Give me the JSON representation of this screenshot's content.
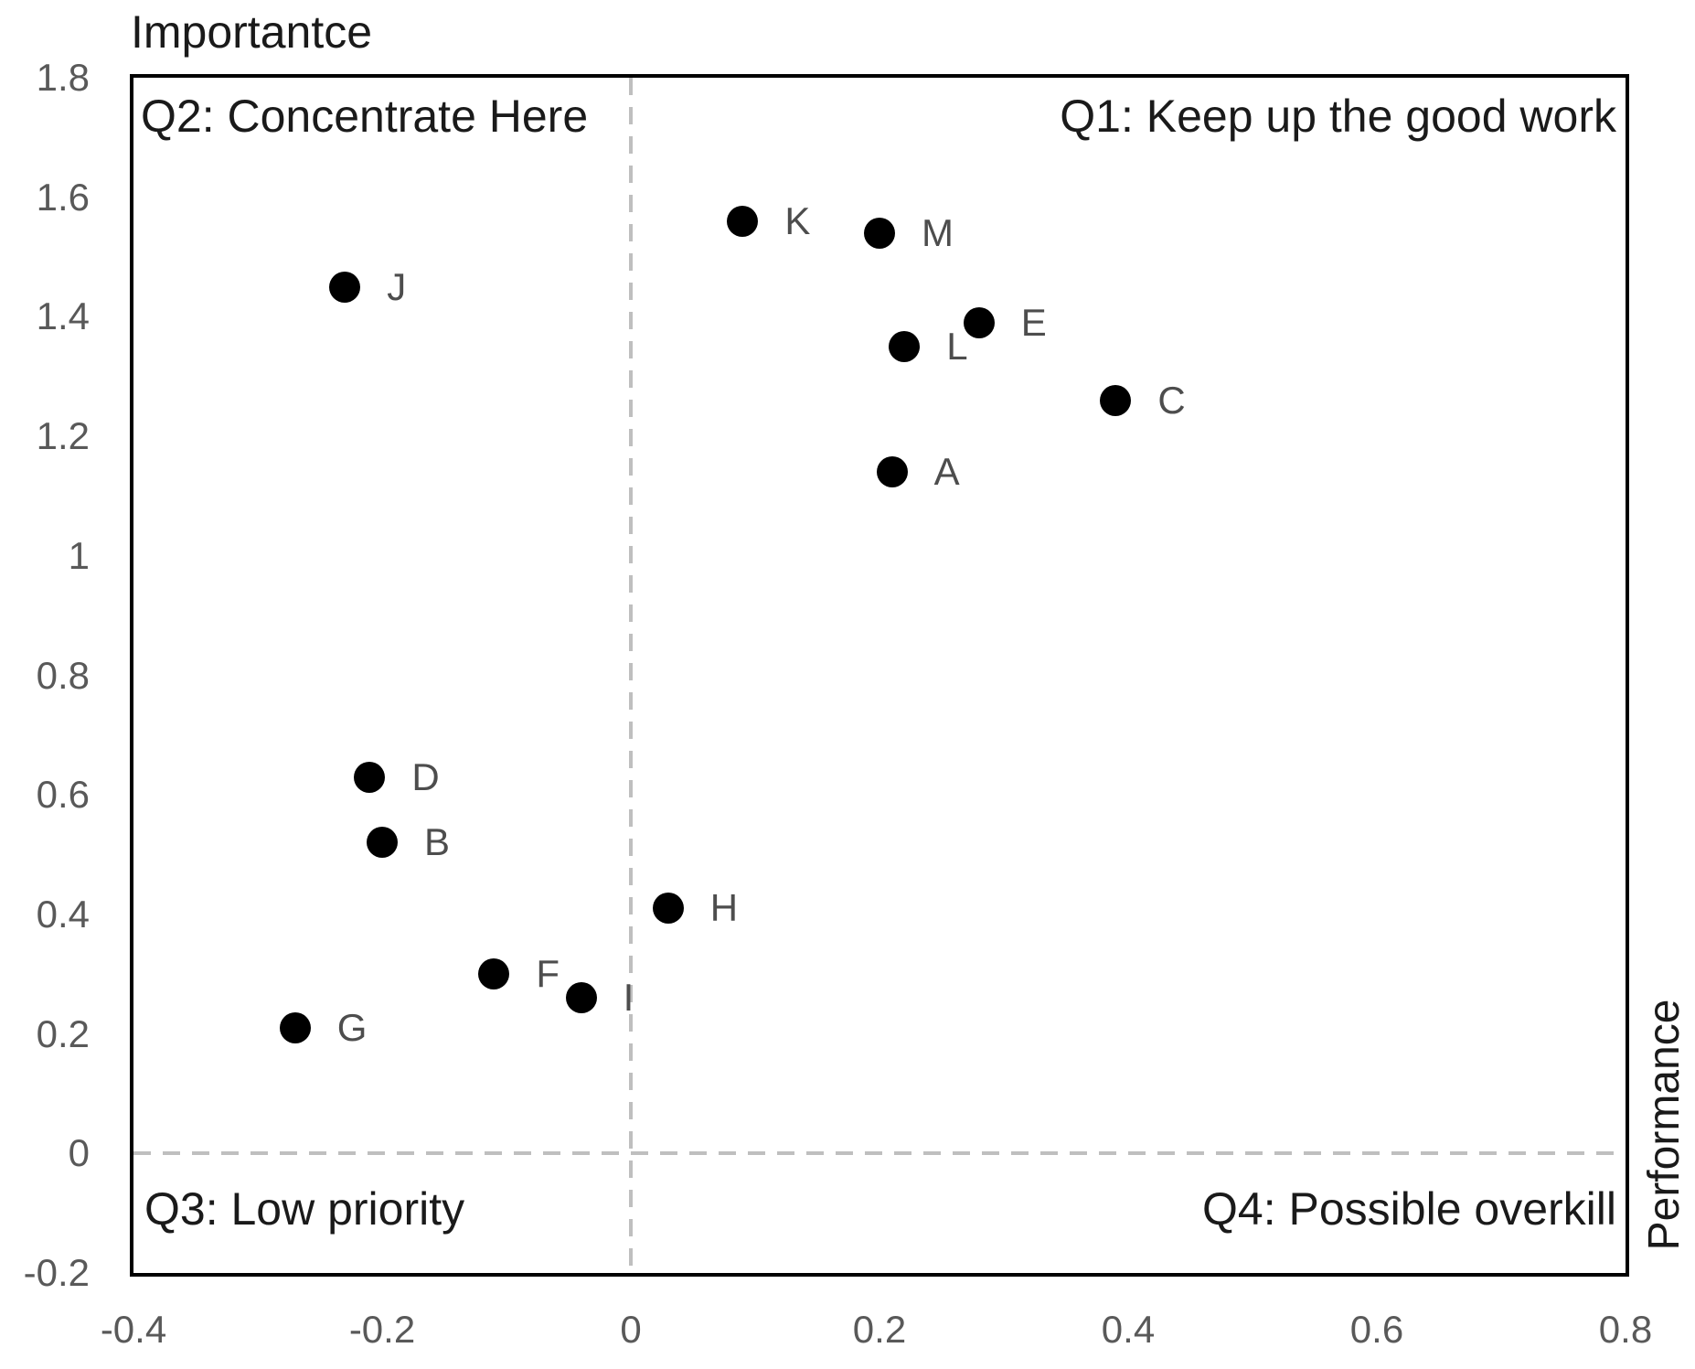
{
  "chart_data": {
    "type": "scatter",
    "title": "Importantce",
    "x_axis_title": "Performance",
    "y_axis_title": "Importantce",
    "xlim": [
      -0.4,
      0.8
    ],
    "ylim": [
      -0.2,
      1.8
    ],
    "grid": false,
    "legend": "none",
    "reference_lines": {
      "x": 0,
      "y": 0
    },
    "x_ticks": [
      {
        "value": -0.4,
        "label": "-0.4"
      },
      {
        "value": -0.2,
        "label": "-0.2"
      },
      {
        "value": 0,
        "label": "0"
      },
      {
        "value": 0.2,
        "label": "0.2"
      },
      {
        "value": 0.4,
        "label": "0.4"
      },
      {
        "value": 0.6,
        "label": "0.6"
      },
      {
        "value": 0.8,
        "label": "0.8"
      }
    ],
    "y_ticks": [
      {
        "value": 1.8,
        "label": "1.8"
      },
      {
        "value": 1.6,
        "label": "1.6"
      },
      {
        "value": 1.4,
        "label": "1.4"
      },
      {
        "value": 1.2,
        "label": "1.2"
      },
      {
        "value": 1,
        "label": "1"
      },
      {
        "value": 0.8,
        "label": "0.8"
      },
      {
        "value": 0.6,
        "label": "0.6"
      },
      {
        "value": 0.4,
        "label": "0.4"
      },
      {
        "value": 0.2,
        "label": "0.2"
      },
      {
        "value": 0,
        "label": "0"
      },
      {
        "value": -0.2,
        "label": "-0.2"
      }
    ],
    "quadrant_labels": [
      {
        "id": "q1",
        "text": "Q1: Keep up the good work",
        "position": "top-right"
      },
      {
        "id": "q2",
        "text": "Q2: Concentrate Here",
        "position": "top-left"
      },
      {
        "id": "q3",
        "text": "Q3: Low priority",
        "position": "bottom-left"
      },
      {
        "id": "q4",
        "text": "Q4: Possible overkill",
        "position": "bottom-right"
      }
    ],
    "points": [
      {
        "label": "A",
        "x": 0.21,
        "y": 1.14
      },
      {
        "label": "B",
        "x": -0.2,
        "y": 0.52
      },
      {
        "label": "C",
        "x": 0.39,
        "y": 1.26
      },
      {
        "label": "D",
        "x": -0.21,
        "y": 0.63
      },
      {
        "label": "E",
        "x": 0.28,
        "y": 1.39
      },
      {
        "label": "F",
        "x": -0.11,
        "y": 0.3
      },
      {
        "label": "G",
        "x": -0.27,
        "y": 0.21
      },
      {
        "label": "H",
        "x": 0.03,
        "y": 0.41
      },
      {
        "label": "I",
        "x": -0.04,
        "y": 0.26
      },
      {
        "label": "J",
        "x": -0.23,
        "y": 1.45
      },
      {
        "label": "K",
        "x": 0.09,
        "y": 1.56
      },
      {
        "label": "L",
        "x": 0.22,
        "y": 1.35
      },
      {
        "label": "M",
        "x": 0.2,
        "y": 1.54
      }
    ],
    "colors": {
      "marker": "#000000",
      "point_label": "#4d4d4d",
      "tick_label": "#595959",
      "reference_line": "#bfbfbf",
      "border": "#000000",
      "quadrant_label": "#1a1a1a",
      "axis_title": "#1a1a1a",
      "background": "#ffffff"
    }
  }
}
